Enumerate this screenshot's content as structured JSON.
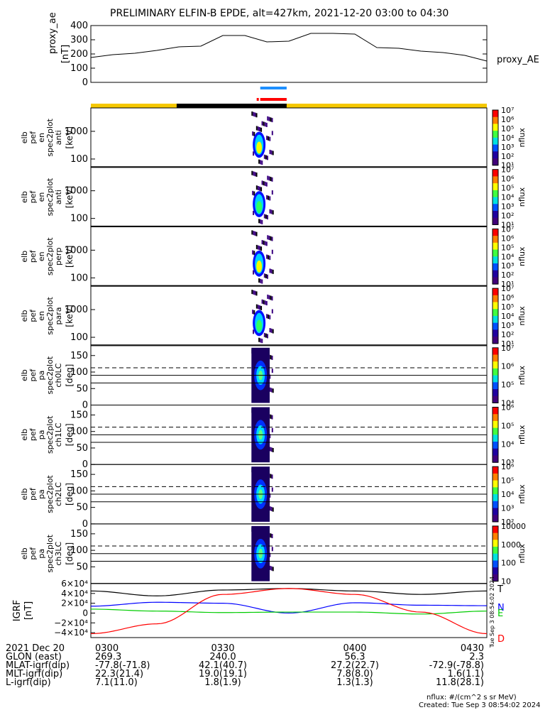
{
  "title": "PRELIMINARY ELFIN-B EPDE, alt=427km, 2021-12-20 03:00 to 04:30",
  "ae_panel": {
    "ylabel": "proxy_ae",
    "yunit": "[nT]",
    "legend": "proxy_AE",
    "ticks": [
      "400",
      "300",
      "200",
      "100",
      "0"
    ]
  },
  "spec_panels": [
    {
      "ylabel": [
        "elb",
        "pef",
        "en",
        "spec2plot",
        "anti"
      ],
      "yunit": "[keV]",
      "ticks": [
        "1000",
        "100"
      ],
      "cbar_label": "nflux",
      "cbar_ticks": [
        "10⁷",
        "10⁶",
        "10⁵",
        "10⁴",
        "10³",
        "10²",
        "10¹"
      ]
    },
    {
      "ylabel": [
        "elb",
        "pef",
        "en",
        "spec2plot",
        "anti"
      ],
      "yunit": "[keV]",
      "ticks": [
        "1000",
        "100"
      ],
      "cbar_label": "nflux",
      "cbar_ticks": [
        "10⁷",
        "10⁶",
        "10⁵",
        "10⁴",
        "10³",
        "10²",
        "10¹"
      ]
    },
    {
      "ylabel": [
        "elb",
        "pef",
        "en",
        "spec2plot",
        "perp"
      ],
      "yunit": "[keV]",
      "ticks": [
        "1000",
        "100"
      ],
      "cbar_label": "nflux",
      "cbar_ticks": [
        "10⁷",
        "10⁶",
        "10⁵",
        "10⁴",
        "10³",
        "10²",
        "10¹"
      ]
    },
    {
      "ylabel": [
        "elb",
        "pef",
        "en",
        "spec2plot",
        "para"
      ],
      "yunit": "[keV]",
      "ticks": [
        "1000",
        "100"
      ],
      "cbar_label": "nflux",
      "cbar_ticks": [
        "10⁷",
        "10⁶",
        "10⁵",
        "10⁴",
        "10³",
        "10²",
        "10¹"
      ]
    },
    {
      "ylabel": [
        "elb",
        "pef",
        "pa",
        "spec2plot",
        "ch0LC"
      ],
      "yunit": "[deg]",
      "ticks": [
        "150",
        "100",
        "50",
        "0"
      ],
      "cbar_label": "nflux",
      "cbar_ticks": [
        "10⁷",
        "10⁶",
        "10⁵",
        "10⁴"
      ]
    },
    {
      "ylabel": [
        "elb",
        "pef",
        "pa",
        "spec2plot",
        "ch1LC"
      ],
      "yunit": "[deg]",
      "ticks": [
        "150",
        "100",
        "50",
        "0"
      ],
      "cbar_label": "nflux",
      "cbar_ticks": [
        "10⁶",
        "10⁵",
        "10⁴",
        "10³"
      ]
    },
    {
      "ylabel": [
        "elb",
        "pef",
        "pa",
        "spec2plot",
        "ch2LC"
      ],
      "yunit": "[deg]",
      "ticks": [
        "150",
        "100",
        "50",
        "0"
      ],
      "cbar_label": "nflux",
      "cbar_ticks": [
        "10⁶",
        "10⁵",
        "10⁴",
        "10³",
        "10²"
      ]
    },
    {
      "ylabel": [
        "elb",
        "pef",
        "pa",
        "spec2plot",
        "ch3LC"
      ],
      "yunit": "[deg]",
      "ticks": [
        "150",
        "100",
        "50"
      ],
      "cbar_label": "nflux",
      "cbar_ticks": [
        "10000",
        "1000",
        "100",
        "10"
      ]
    }
  ],
  "igrf_panel": {
    "ylabel": "IGRF",
    "yunit": "[nT]",
    "ticks": [
      "6×10⁴",
      "4×10⁴",
      "2×10⁴",
      "0",
      "−2×10⁴",
      "−4×10⁴"
    ],
    "labels": {
      "T": "T",
      "N": "N",
      "E": "E",
      "D": "D"
    },
    "side_text": "Tue Sep  3 08:54:02 2024"
  },
  "colors": {
    "T": "#000000",
    "N": "#0000ff",
    "E": "#00cc00",
    "D": "#ff0000",
    "science_zone": "#f5c800",
    "shadow": "#000000",
    "bar_blue": "#1e90ff",
    "bar_red": "#ff0000"
  },
  "footer": {
    "rows": [
      {
        "label": "2021 Dec 20",
        "values": [
          "0300",
          "0330",
          "0400",
          "0430"
        ]
      },
      {
        "label": "GLON (east)",
        "values": [
          "269.3",
          "240.0",
          "56.3",
          "2.3"
        ]
      },
      {
        "label": "MLAT-igrf(dip)",
        "values": [
          "-77.8(-71.8)",
          "42.1(40.7)",
          "27.2(22.7)",
          "-72.9(-78.8)"
        ]
      },
      {
        "label": "MLT-igrf(dip)",
        "values": [
          "22.3(21.4)",
          "19.0(19.1)",
          "7.8(8.0)",
          "1.6(1.1)"
        ]
      },
      {
        "label": "L-igrf(dip)",
        "values": [
          "7.1(11.0)",
          "1.8(1.9)",
          "1.3(1.3)",
          "11.8(28.1)"
        ]
      }
    ],
    "units_note": "nflux: #/(cm^2 s sr MeV)",
    "created": "Created: Tue Sep  3 08:54:02 2024"
  },
  "chart_data": {
    "type": "line",
    "title": "PRELIMINARY ELFIN-B EPDE, alt=427km, 2021-12-20 03:00 to 04:30",
    "x_ticks": [
      "0300",
      "0330",
      "0400",
      "0430"
    ],
    "xlim_minutes_after_0300": [
      0,
      90
    ],
    "series": [
      {
        "name": "proxy_AE",
        "x": [
          0,
          5,
          10,
          15,
          20,
          25,
          30,
          35,
          40,
          45,
          50,
          55,
          60,
          65,
          70,
          75,
          80,
          85,
          90
        ],
        "values": [
          175,
          195,
          205,
          225,
          250,
          255,
          330,
          330,
          285,
          290,
          345,
          345,
          340,
          245,
          240,
          220,
          210,
          190,
          150
        ]
      }
    ],
    "ae_ylim": [
      0,
      400
    ],
    "energy_ylim_keV": [
      50,
      7000
    ],
    "pitch_angle_ylim_deg": [
      0,
      180
    ],
    "pitch_angle_reference_lines_deg": [
      113,
      90,
      67
    ],
    "igrf_ylim": [
      -50000,
      60000
    ],
    "igrf_series": [
      {
        "name": "T",
        "x": [
          0,
          15,
          30,
          45,
          60,
          75,
          90
        ],
        "values": [
          45000,
          35000,
          47000,
          50000,
          45000,
          38000,
          45000
        ]
      },
      {
        "name": "N",
        "x": [
          0,
          15,
          30,
          45,
          60,
          75,
          90
        ],
        "values": [
          14000,
          22000,
          20000,
          0,
          21000,
          16000,
          15000
        ]
      },
      {
        "name": "E",
        "x": [
          0,
          15,
          30,
          45,
          60,
          75,
          90
        ],
        "values": [
          8000,
          4000,
          1000,
          2000,
          2000,
          -2000,
          4000
        ]
      },
      {
        "name": "D",
        "x": [
          0,
          15,
          30,
          45,
          60,
          75,
          90
        ],
        "values": [
          -42000,
          -22000,
          38000,
          50000,
          38000,
          2000,
          -42000
        ]
      }
    ],
    "spectrogram_time_window_minutes_after_0300": [
      35,
      41
    ]
  }
}
